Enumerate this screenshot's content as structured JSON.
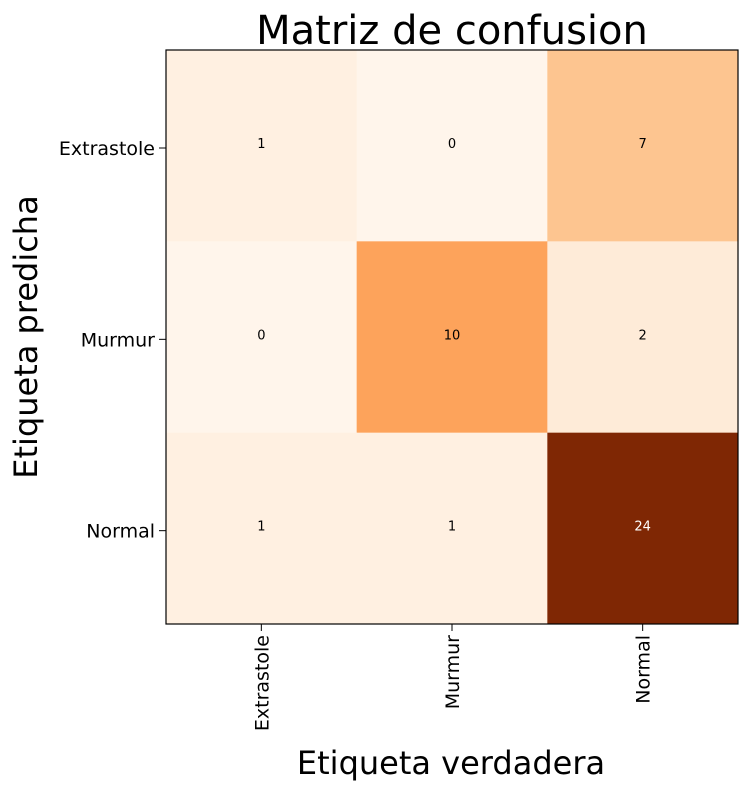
{
  "chart_data": {
    "type": "heatmap",
    "title": "Matriz de confusion",
    "xlabel": "Etiqueta verdadera",
    "ylabel": "Etiqueta predicha",
    "x_categories": [
      "Extrastole",
      "Murmur",
      "Normal"
    ],
    "y_categories": [
      "Extrastole",
      "Murmur",
      "Normal"
    ],
    "values": [
      [
        1,
        0,
        7
      ],
      [
        0,
        10,
        2
      ],
      [
        1,
        1,
        24
      ]
    ],
    "colormap": "Oranges",
    "colorscale_range": [
      0,
      24
    ],
    "grid": false
  }
}
